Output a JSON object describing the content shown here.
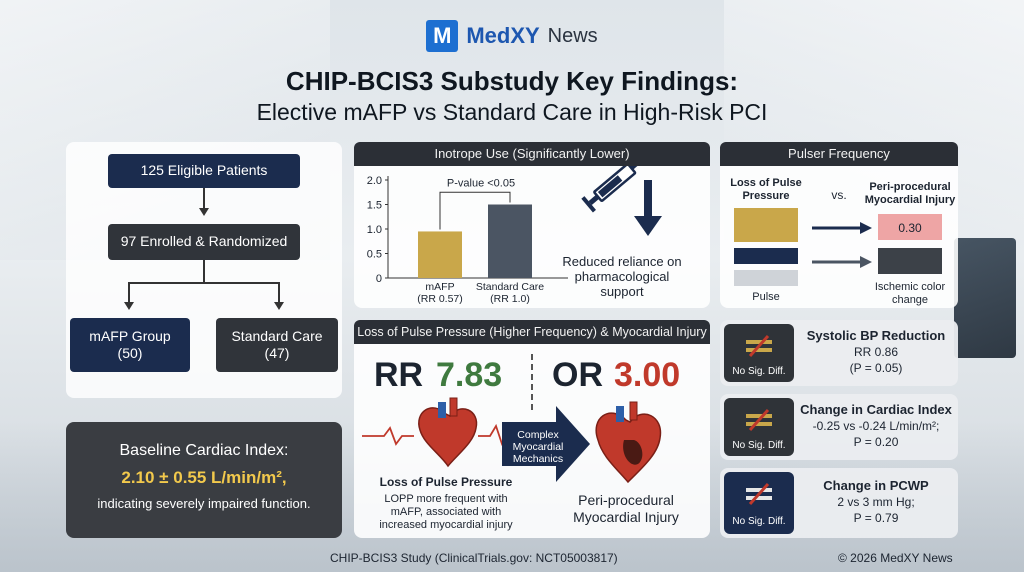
{
  "brand": {
    "logo": "M",
    "name": "MedXY",
    "suffix": "News"
  },
  "title": {
    "line1": "CHIP-BCIS3 Substudy Key Findings:",
    "line2": "Elective mAFP vs Standard Care in High-Risk PCI"
  },
  "flow": {
    "eligible": "125 Eligible Patients",
    "enrolled": "97 Enrolled & Randomized",
    "group_a": {
      "name": "mAFP Group",
      "count": "(50)"
    },
    "group_b": {
      "name": "Standard Care",
      "count": "(47)"
    }
  },
  "baseline": {
    "label": "Baseline Cardiac Index:",
    "value": "2.10 ± 0.55 L/min/m²,",
    "note": "indicating severely impaired function."
  },
  "inotrope": {
    "header": "Inotrope Use (Significantly Lower)",
    "pvalue": "P-value <0.05",
    "reduced_text": [
      "Reduced reliance on",
      "pharmacological",
      "support"
    ]
  },
  "chart_data": {
    "type": "bar",
    "categories": [
      "mAFP",
      "Standard Care"
    ],
    "category_sublabels": [
      "(RR 0.57)",
      "(RR 1.0)"
    ],
    "values": [
      0.95,
      1.5
    ],
    "ylim": [
      0,
      2.0
    ],
    "yticks": [
      "0",
      "0.5",
      "1.0",
      "1.5",
      "2.0"
    ],
    "colors": [
      "#c9a74a",
      "#4b5563"
    ]
  },
  "pulser": {
    "header": "Pulser Frequency",
    "left_label": [
      "Loss of Pulse",
      "Pressure"
    ],
    "vs": "vs.",
    "right_label": [
      "Peri-procedural",
      "Myocardial Injury"
    ],
    "value": "0.30",
    "pulse_label": "Pulse",
    "ischemic_label": [
      "Ischemic color",
      "change"
    ]
  },
  "lopp": {
    "header": "Loss of Pulse Pressure (Higher Frequency) & Myocardial Injury",
    "rr_prefix": "RR",
    "rr_value": "7.83",
    "or_prefix": "OR",
    "or_value": "3.00",
    "arrow_text": [
      "Complex",
      "Myocardial",
      "Mechanics"
    ],
    "left_title": "Loss of Pulse Pressure",
    "left_desc": [
      "LOPP more frequent with",
      "mAFP, associated with",
      "increased myocardial injury"
    ],
    "right_title": [
      "Peri-procedural",
      "Myocardial Injury"
    ]
  },
  "outcomes": [
    {
      "badge": "No Sig. Diff.",
      "title": "Systolic BP Reduction",
      "lines": [
        "RR 0.86",
        "(P = 0.05)"
      ]
    },
    {
      "badge": "No Sig. Diff.",
      "title": "Change in Cardiac Index",
      "lines": [
        "-0.25 vs -0.24 L/min/m²;",
        "P = 0.20"
      ]
    },
    {
      "badge": "No Sig. Diff.",
      "title": "Change in PCWP",
      "lines": [
        "2 vs 3 mm Hg;",
        "P = 0.79"
      ]
    }
  ],
  "footer": {
    "study": "CHIP-BCIS3 Study (ClinicalTrials.gov: NCT05003817)",
    "copyright": "© 2026 MedXY News"
  },
  "colors": {
    "navy": "#1b2c4e",
    "gold": "#c9a74a",
    "green": "#3f7a3f",
    "red": "#c0392b",
    "brand_blue": "#1d6fd1"
  },
  "icons": [
    "syringe-icon",
    "down-arrow-icon",
    "heart-icon",
    "right-arrow-icon",
    "not-equal-icon"
  ]
}
